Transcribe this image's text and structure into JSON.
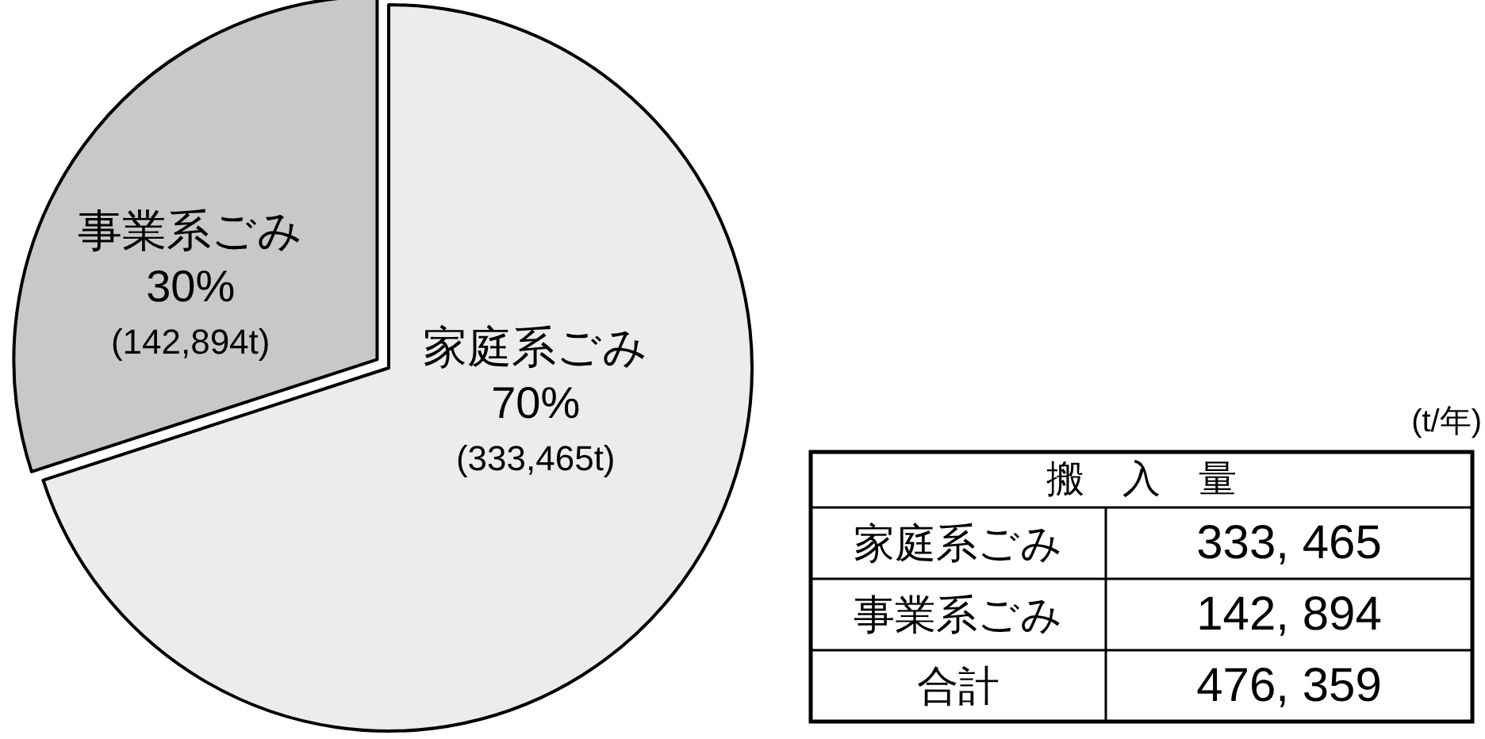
{
  "chart_data": {
    "type": "pie",
    "categories": [
      "家庭系ごみ",
      "事業系ごみ"
    ],
    "values": [
      70,
      30
    ],
    "colors": [
      "#ececec",
      "#c8c8c8"
    ],
    "value_labels": [
      "70%",
      "30%"
    ],
    "annotations": [
      "(333,465t)",
      "(142,894t)",
      "(t/年)",
      "搬　入　量",
      "333, 465",
      "142, 894",
      "合計",
      "476, 359"
    ]
  }
}
